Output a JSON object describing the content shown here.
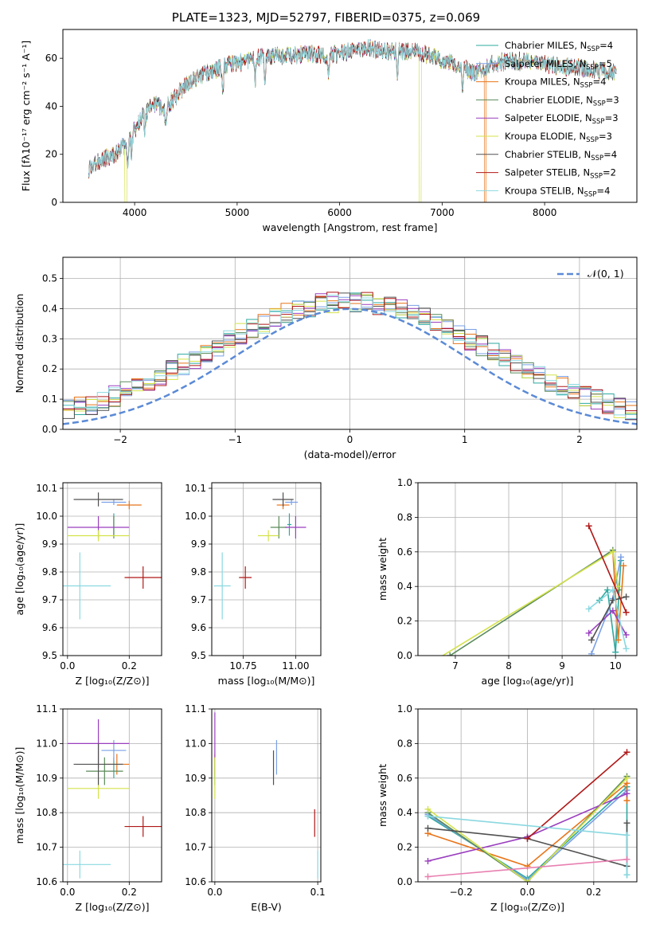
{
  "figure": {
    "title": "PLATE=1323, MJD=52797, FIBERID=0375, z=0.069"
  },
  "models": [
    {
      "name": "Chabrier MILES",
      "nssp": "4",
      "color": "#2ca9a0"
    },
    {
      "name": "Salpeter MILES",
      "nssp": "5",
      "color": "#7aa0e6"
    },
    {
      "name": "Kroupa MILES",
      "nssp": "4",
      "color": "#e8751a"
    },
    {
      "name": "Chabrier ELODIE",
      "nssp": "3",
      "color": "#5a8a5a"
    },
    {
      "name": "Salpeter ELODIE",
      "nssp": "3",
      "color": "#9a3fbf"
    },
    {
      "name": "Kroupa ELODIE",
      "nssp": "3",
      "color": "#d4e24a"
    },
    {
      "name": "Chabrier STELIB",
      "nssp": "4",
      "color": "#505050"
    },
    {
      "name": "Salpeter STELIB",
      "nssp": "2",
      "color": "#b01818"
    },
    {
      "name": "Kroupa STELIB",
      "nssp": "4",
      "color": "#8ad8e0"
    }
  ],
  "chart_data": [
    {
      "id": "spectrum",
      "type": "line",
      "xlabel": "wavelength [Angstrom, rest frame]",
      "ylabel": "Flux [fλ10⁻¹⁷ erg cm⁻² s⁻¹ A⁻¹]",
      "xlim": [
        3300,
        8900
      ],
      "ylim": [
        0,
        72
      ],
      "xticks": [
        4000,
        5000,
        6000,
        7000,
        8000
      ],
      "yticks": [
        0,
        20,
        40,
        60
      ],
      "grid": false,
      "legend": "top-right",
      "continuum": {
        "x": [
          3550,
          3700,
          3850,
          4000,
          4100,
          4200,
          4300,
          4400,
          4500,
          4700,
          4900,
          5100,
          5300,
          5500,
          5700,
          5900,
          6100,
          6300,
          6500,
          6700,
          6900,
          7100,
          7300,
          7500,
          7700,
          7900,
          8100,
          8300,
          8500,
          8700
        ],
        "y": [
          14,
          18,
          21,
          30,
          38,
          41,
          39,
          44,
          49,
          54,
          57,
          59,
          61,
          61,
          62,
          61,
          63,
          64,
          63,
          63,
          61,
          58,
          54,
          58,
          59,
          58,
          57,
          56,
          55,
          54
        ]
      },
      "absorption_lines": [
        3934,
        3969,
        4101,
        4304,
        4861,
        5175,
        5270,
        5892,
        6563,
        7200
      ],
      "dropouts": [
        {
          "x": 3915,
          "series": "Kroupa ELODIE"
        },
        {
          "x": 6785,
          "series": "Kroupa ELODIE"
        },
        {
          "x": 7420,
          "series": "Kroupa MILES"
        }
      ]
    },
    {
      "id": "residual-hist",
      "type": "area",
      "xlabel": "(data-model)/error",
      "ylabel": "Normed distribution",
      "xlim": [
        -2.5,
        2.5
      ],
      "ylim": [
        0,
        0.57
      ],
      "xticks": [
        -2,
        -1,
        0,
        1,
        2
      ],
      "yticks": [
        0.0,
        0.1,
        0.2,
        0.3,
        0.4,
        0.5
      ],
      "grid": true,
      "legend": "top-right",
      "reference_label": "𝒩(0, 1)",
      "reference_color": "#5b8ad6",
      "bin_width": 0.1
    },
    {
      "id": "age-vs-Z",
      "type": "scatter",
      "xlabel": "Z [log₁₀(Z/Z⊙)]",
      "ylabel": "age  [log₁₀(age/yr)]",
      "xlim": [
        -0.015,
        0.305
      ],
      "ylim": [
        9.5,
        10.12
      ],
      "xticks": [
        0.0,
        0.2
      ],
      "yticks": [
        9.5,
        9.6,
        9.7,
        9.8,
        9.9,
        10.0,
        10.1
      ],
      "grid": true,
      "points": [
        {
          "series": "Chabrier MILES",
          "x": 0.15,
          "xerr": 0.0,
          "y": 9.97,
          "yerr": 0.04
        },
        {
          "series": "Salpeter MILES",
          "x": 0.15,
          "xerr": 0.04,
          "y": 10.05,
          "yerr": 0.01
        },
        {
          "series": "Kroupa MILES",
          "x": 0.2,
          "xerr": 0.04,
          "y": 10.04,
          "yerr": 0.015
        },
        {
          "series": "Chabrier ELODIE",
          "x": 0.15,
          "xerr": 0.0,
          "y": 9.96,
          "yerr": 0.04
        },
        {
          "series": "Salpeter ELODIE",
          "x": 0.1,
          "xerr": 0.1,
          "y": 9.96,
          "yerr": 0.04
        },
        {
          "series": "Kroupa ELODIE",
          "x": 0.1,
          "xerr": 0.1,
          "y": 9.93,
          "yerr": 0.02
        },
        {
          "series": "Chabrier STELIB",
          "x": 0.1,
          "xerr": 0.08,
          "y": 10.06,
          "yerr": 0.025
        },
        {
          "series": "Salpeter STELIB",
          "x": 0.245,
          "xerr": 0.06,
          "y": 9.78,
          "yerr": 0.04
        },
        {
          "series": "Kroupa STELIB",
          "x": 0.04,
          "xerr": 0.1,
          "y": 9.75,
          "yerr": 0.12
        }
      ]
    },
    {
      "id": "age-vs-mass",
      "type": "scatter",
      "xlabel": "mass [log₁₀(M/M⊙)]",
      "ylabel": "",
      "xlim": [
        10.6,
        11.12
      ],
      "ylim": [
        9.5,
        10.12
      ],
      "xticks": [
        10.75,
        11.0
      ],
      "yticks": [
        9.5,
        9.6,
        9.7,
        9.8,
        9.9,
        10.0,
        10.1
      ],
      "grid": true,
      "points": [
        {
          "series": "Chabrier MILES",
          "x": 10.97,
          "xerr": 0.01,
          "y": 9.97,
          "yerr": 0.04
        },
        {
          "series": "Salpeter MILES",
          "x": 10.98,
          "xerr": 0.03,
          "y": 10.05,
          "yerr": 0.01
        },
        {
          "series": "Kroupa MILES",
          "x": 10.94,
          "xerr": 0.03,
          "y": 10.04,
          "yerr": 0.015
        },
        {
          "series": "Chabrier ELODIE",
          "x": 10.92,
          "xerr": 0.04,
          "y": 9.96,
          "yerr": 0.04
        },
        {
          "series": "Salpeter ELODIE",
          "x": 11.0,
          "xerr": 0.05,
          "y": 9.96,
          "yerr": 0.04
        },
        {
          "series": "Kroupa ELODIE",
          "x": 10.87,
          "xerr": 0.05,
          "y": 9.93,
          "yerr": 0.02
        },
        {
          "series": "Chabrier STELIB",
          "x": 10.94,
          "xerr": 0.05,
          "y": 10.06,
          "yerr": 0.025
        },
        {
          "series": "Salpeter STELIB",
          "x": 10.76,
          "xerr": 0.03,
          "y": 9.78,
          "yerr": 0.04
        },
        {
          "series": "Kroupa STELIB",
          "x": 10.65,
          "xerr": 0.04,
          "y": 9.75,
          "yerr": 0.12
        }
      ]
    },
    {
      "id": "weight-vs-age",
      "type": "line",
      "xlabel": "age  [log₁₀(age/yr)]",
      "ylabel": "mass weight",
      "xlim": [
        6.3,
        10.4
      ],
      "ylim": [
        0,
        1
      ],
      "xticks": [
        7,
        8,
        9,
        10
      ],
      "yticks": [
        0.0,
        0.2,
        0.4,
        0.6,
        0.8,
        1.0
      ],
      "grid": true,
      "series": [
        {
          "name": "Chabrier MILES",
          "x": [
            9.7,
            9.85,
            10.0,
            10.1
          ],
          "y": [
            0.32,
            0.38,
            0.02,
            0.55
          ]
        },
        {
          "name": "Salpeter MILES",
          "x": [
            9.55,
            9.95,
            10.1
          ],
          "y": [
            0.01,
            0.33,
            0.57
          ]
        },
        {
          "name": "Kroupa MILES",
          "x": [
            9.95,
            10.05,
            10.15
          ],
          "y": [
            0.6,
            0.09,
            0.52
          ]
        },
        {
          "name": "Chabrier ELODIE",
          "x": [
            6.9,
            9.95,
            10.05
          ],
          "y": [
            0.0,
            0.61,
            0.38
          ]
        },
        {
          "name": "Salpeter ELODIE",
          "x": [
            9.5,
            9.95,
            10.2
          ],
          "y": [
            0.13,
            0.26,
            0.12
          ]
        },
        {
          "name": "Kroupa ELODIE",
          "x": [
            6.5,
            9.95,
            10.05
          ],
          "y": [
            -0.05,
            0.6,
            0.4
          ]
        },
        {
          "name": "Chabrier STELIB",
          "x": [
            9.55,
            9.95,
            10.2
          ],
          "y": [
            0.09,
            0.32,
            0.34
          ]
        },
        {
          "name": "Salpeter STELIB",
          "x": [
            9.5,
            10.2
          ],
          "y": [
            0.75,
            0.25
          ]
        },
        {
          "name": "Kroupa STELIB",
          "x": [
            9.5,
            9.95,
            10.2
          ],
          "y": [
            0.27,
            0.38,
            0.04
          ]
        }
      ]
    },
    {
      "id": "mass-vs-Z",
      "type": "scatter",
      "xlabel": "Z [log₁₀(Z/Z⊙)]",
      "ylabel": "mass [log₁₀(M/M⊙)]",
      "xlim": [
        -0.015,
        0.305
      ],
      "ylim": [
        10.6,
        11.1
      ],
      "xticks": [
        0.0,
        0.2
      ],
      "yticks": [
        10.6,
        10.7,
        10.8,
        10.9,
        11.0,
        11.1
      ],
      "grid": true,
      "points": [
        {
          "series": "Chabrier MILES",
          "x": 0.15,
          "xerr": 0.0,
          "y": 10.93,
          "yerr": 0.03
        },
        {
          "series": "Salpeter MILES",
          "x": 0.15,
          "xerr": 0.04,
          "y": 10.98,
          "yerr": 0.03
        },
        {
          "series": "Kroupa MILES",
          "x": 0.16,
          "xerr": 0.04,
          "y": 10.94,
          "yerr": 0.03
        },
        {
          "series": "Chabrier ELODIE",
          "x": 0.12,
          "xerr": 0.06,
          "y": 10.92,
          "yerr": 0.04
        },
        {
          "series": "Salpeter ELODIE",
          "x": 0.1,
          "xerr": 0.1,
          "y": 11.0,
          "yerr": 0.07
        },
        {
          "series": "Kroupa ELODIE",
          "x": 0.1,
          "xerr": 0.1,
          "y": 10.87,
          "yerr": 0.03
        },
        {
          "series": "Chabrier STELIB",
          "x": 0.1,
          "xerr": 0.08,
          "y": 10.94,
          "yerr": 0.06
        },
        {
          "series": "Salpeter STELIB",
          "x": 0.245,
          "xerr": 0.06,
          "y": 10.76,
          "yerr": 0.03
        },
        {
          "series": "Kroupa STELIB",
          "x": 0.04,
          "xerr": 0.1,
          "y": 10.65,
          "yerr": 0.04
        }
      ]
    },
    {
      "id": "mass-vs-ebv",
      "type": "scatter",
      "xlabel": "E(B-V)",
      "ylabel": "",
      "xlim": [
        -0.003,
        0.103
      ],
      "ylim": [
        10.6,
        11.1
      ],
      "xticks": [
        0.0,
        0.1
      ],
      "yticks": [
        10.6,
        10.7,
        10.8,
        10.9,
        11.0,
        11.1
      ],
      "grid": true,
      "points": [
        {
          "series": "Chabrier MILES",
          "x": 0.0,
          "xerr": 0.0,
          "y": 10.93,
          "yerr": 0.03
        },
        {
          "series": "Salpeter MILES",
          "x": 0.06,
          "xerr": 0.0,
          "y": 10.96,
          "yerr": 0.05
        },
        {
          "series": "Kroupa MILES",
          "x": 0.0,
          "xerr": 0.0,
          "y": 10.94,
          "yerr": 0.03
        },
        {
          "series": "Chabrier ELODIE",
          "x": 0.0,
          "xerr": 0.0,
          "y": 10.92,
          "yerr": 0.04
        },
        {
          "series": "Salpeter ELODIE",
          "x": 0.0,
          "xerr": 0.0,
          "y": 11.02,
          "yerr": 0.07
        },
        {
          "series": "Kroupa ELODIE",
          "x": 0.0,
          "xerr": 0.0,
          "y": 10.9,
          "yerr": 0.06
        },
        {
          "series": "Chabrier STELIB",
          "x": 0.057,
          "xerr": 0.0,
          "y": 10.93,
          "yerr": 0.05
        },
        {
          "series": "Salpeter STELIB",
          "x": 0.097,
          "xerr": 0.0,
          "y": 10.77,
          "yerr": 0.04
        },
        {
          "series": "Kroupa STELIB",
          "x": 0.1,
          "xerr": 0.0,
          "y": 10.65,
          "yerr": 0.04
        }
      ]
    },
    {
      "id": "weight-vs-Z",
      "type": "line",
      "xlabel": "Z [log₁₀(Z/Z⊙)]",
      "ylabel": "mass weight",
      "xlim": [
        -0.33,
        0.33
      ],
      "ylim": [
        0,
        1
      ],
      "xticks": [
        -0.2,
        0.0,
        0.2
      ],
      "yticks": [
        0.0,
        0.2,
        0.4,
        0.6,
        0.8,
        1.0
      ],
      "grid": true,
      "series": [
        {
          "name": "Chabrier MILES",
          "x": [
            -0.3,
            0.0,
            0.3,
            0.3
          ],
          "y": [
            0.38,
            0.02,
            0.55,
            0.04
          ]
        },
        {
          "name": "Salpeter MILES",
          "x": [
            -0.3,
            0.0,
            0.3
          ],
          "y": [
            0.39,
            0.01,
            0.53
          ]
        },
        {
          "name": "Kroupa MILES",
          "x": [
            -0.3,
            0.0,
            0.3,
            0.3
          ],
          "y": [
            0.28,
            0.09,
            0.57,
            0.47
          ]
        },
        {
          "name": "Chabrier ELODIE",
          "x": [
            -0.3,
            0.0,
            0.3
          ],
          "y": [
            0.4,
            0.0,
            0.61
          ]
        },
        {
          "name": "Salpeter ELODIE",
          "x": [
            -0.3,
            0.0,
            0.3
          ],
          "y": [
            0.12,
            0.26,
            0.51
          ]
        },
        {
          "name": "Kroupa ELODIE",
          "x": [
            -0.3,
            0.0,
            0.3
          ],
          "y": [
            0.42,
            0.0,
            0.6
          ]
        },
        {
          "name": "Chabrier STELIB",
          "x": [
            -0.3,
            0.0,
            0.3,
            0.3
          ],
          "y": [
            0.31,
            0.25,
            0.09,
            0.34
          ]
        },
        {
          "name": "Salpeter STELIB",
          "x": [
            0.0,
            0.3
          ],
          "y": [
            0.25,
            0.75
          ]
        },
        {
          "name": "Kroupa STELIB",
          "x": [
            -0.3,
            0.3,
            0.3
          ],
          "y": [
            0.38,
            0.27,
            0.04
          ]
        }
      ],
      "extra_series": [
        {
          "color": "#e87fb0",
          "x": [
            -0.3,
            0.3
          ],
          "y": [
            0.03,
            0.13
          ]
        }
      ]
    }
  ]
}
